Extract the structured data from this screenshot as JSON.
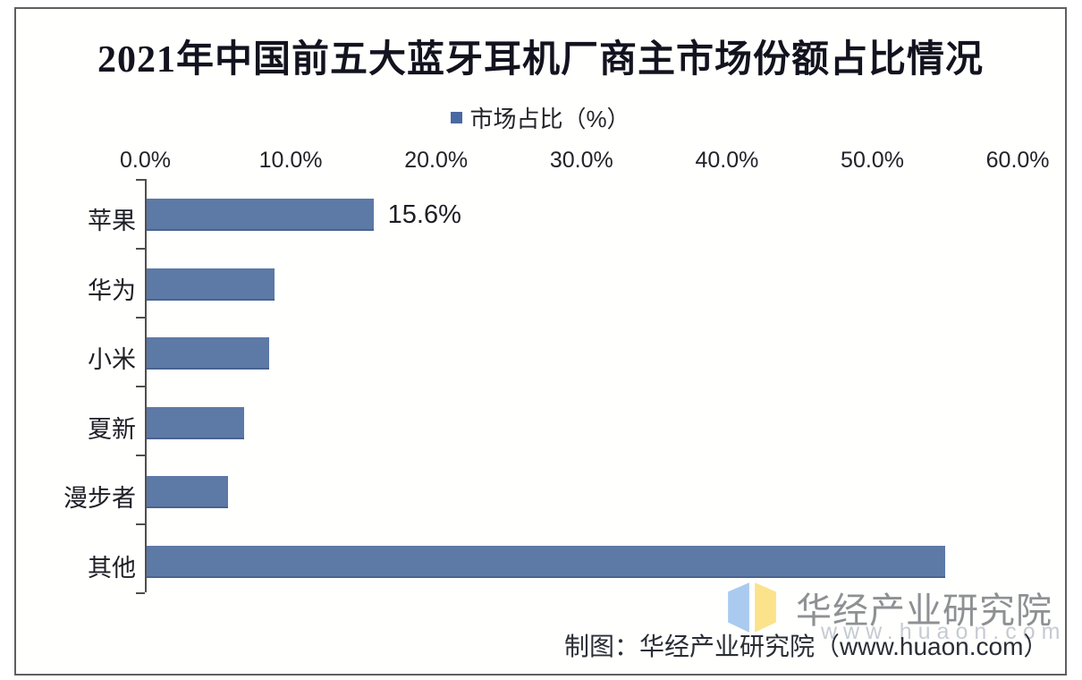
{
  "chart_data": {
    "type": "bar",
    "orientation": "horizontal",
    "title": "2021年中国前五大蓝牙耳机厂商主市场份额占比情况",
    "legend_entries": [
      "市场占比（%）"
    ],
    "legend_position": "top",
    "categories": [
      "苹果",
      "华为",
      "小米",
      "夏新",
      "漫步者",
      "其他"
    ],
    "values": [
      15.6,
      8.8,
      8.4,
      6.7,
      5.6,
      54.9
    ],
    "data_labels": [
      "15.6%",
      "",
      "",
      "",
      "",
      ""
    ],
    "xlabel": "",
    "ylabel": "",
    "xlim": [
      0,
      60
    ],
    "x_ticks": [
      "0.0%",
      "10.0%",
      "20.0%",
      "30.0%",
      "40.0%",
      "50.0%",
      "60.0%"
    ],
    "grid": false,
    "bar_color": "#5d79a6"
  },
  "legend": {
    "label": "市场占比（%）",
    "marker_color": "#4a69a2"
  },
  "footer": {
    "caption": "制图：华经产业研究院（www.huaon.com）",
    "brand_name": "华经产业研究院",
    "watermark": "www.huaon.com",
    "logo_left_color": "#aacaef",
    "logo_right_color": "#fbe38c"
  }
}
